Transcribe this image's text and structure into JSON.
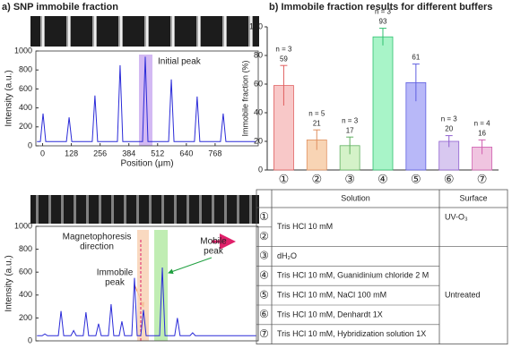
{
  "chart_data": [
    {
      "type": "line",
      "title": "a) SNP immobile fraction",
      "xlabel": "Position (μm)",
      "ylabel": "Intensity (a.u.)",
      "color": "#2b2bd8",
      "x": [
        -25,
        -10,
        2,
        14,
        106,
        118,
        130,
        221,
        233,
        245,
        333,
        345,
        357,
        445,
        457,
        469,
        561,
        573,
        585,
        676,
        688,
        700,
        792,
        804,
        816,
        950
      ],
      "values": [
        45,
        45,
        340,
        45,
        45,
        300,
        45,
        45,
        530,
        45,
        45,
        850,
        45,
        45,
        940,
        45,
        45,
        700,
        45,
        45,
        520,
        45,
        45,
        340,
        45,
        45
      ],
      "xlim": [
        -30,
        960
      ],
      "ylim": [
        0,
        1000
      ],
      "xticks": [
        0,
        128,
        256,
        384,
        512,
        640,
        768
      ],
      "yticks": [
        0,
        200,
        400,
        600,
        800,
        1000
      ],
      "highlights": [
        {
          "range": [
            429,
            489
          ],
          "color": "#c8a8f0",
          "label": "Initial peak",
          "label_color": "#9a5ce0"
        }
      ]
    },
    {
      "type": "line",
      "ylabel": "Intensity (a.u.)",
      "color": "#2b2bd8",
      "x": [
        -25,
        -2,
        10,
        22,
        70,
        82,
        94,
        126,
        138,
        150,
        181,
        193,
        205,
        237,
        249,
        261,
        293,
        305,
        317,
        341,
        353,
        365,
        397,
        409,
        421,
        437,
        449,
        461,
        521,
        533,
        545,
        588,
        600,
        612,
        656,
        668,
        680,
        950
      ],
      "values": [
        45,
        45,
        60,
        45,
        45,
        260,
        45,
        45,
        90,
        45,
        45,
        250,
        45,
        45,
        150,
        45,
        45,
        320,
        45,
        45,
        170,
        45,
        45,
        550,
        45,
        45,
        270,
        45,
        45,
        640,
        45,
        45,
        200,
        45,
        45,
        70,
        45,
        45
      ],
      "xlim": [
        -30,
        960
      ],
      "ylim": [
        0,
        1000
      ],
      "yticks": [
        0,
        200,
        400,
        600,
        800,
        1000
      ],
      "marker_x": 437,
      "highlights": [
        {
          "range": [
            421,
            473
          ],
          "color": "#f8d0b0"
        },
        {
          "range": [
            497,
            557
          ],
          "color": "#b0e8a0"
        }
      ],
      "annotations": [
        {
          "lines": [
            "Magnetophoresis",
            "direction"
          ],
          "color": "#e0206a"
        },
        {
          "lines": [
            "Immobile",
            "peak"
          ],
          "color": "#f08040"
        },
        {
          "lines": [
            "Mobile",
            "peak"
          ],
          "color": "#20a040"
        }
      ]
    },
    {
      "type": "bar",
      "title": "b) Immobile fraction results for different buffers",
      "ylabel": "Immobile fraction (%)",
      "categories": [
        "①",
        "②",
        "③",
        "④",
        "⑤",
        "⑥",
        "⑦"
      ],
      "values": [
        59,
        21,
        17,
        93,
        61,
        20,
        16
      ],
      "errors": [
        14,
        7,
        6,
        6,
        13,
        4,
        5
      ],
      "n_labels": [
        "n = 3",
        "n = 5",
        "n = 3",
        "n = 3",
        null,
        "n = 3",
        "n = 4"
      ],
      "colors": [
        "#f8c8c8",
        "#f8d4b4",
        "#d4f2c8",
        "#a8f4c8",
        "#b8b8f8",
        "#d8c8f0",
        "#f0c4e0"
      ],
      "edge_colors": [
        "#e06060",
        "#e09060",
        "#60b060",
        "#30c070",
        "#6060e0",
        "#9060d0",
        "#d060b0"
      ],
      "ylim": [
        0,
        100
      ],
      "yticks": [
        0,
        20,
        40,
        60,
        80,
        100
      ]
    }
  ],
  "table": {
    "header": [
      "Solution",
      "Surface"
    ],
    "numbers": [
      "①",
      "②",
      "③",
      "④",
      "⑤",
      "⑥",
      "⑦"
    ],
    "solutions": [
      {
        "text": "Tris HCl 10 mM",
        "rowspan": 2
      },
      {
        "text": "dH₂O",
        "rowspan": 1
      },
      {
        "text": "Tris HCl 10 mM, Guanidinium chloride 2 M",
        "rowspan": 1
      },
      {
        "text": "Tris HCl 10 mM, NaCl 100 mM",
        "rowspan": 1
      },
      {
        "text": "Tris HCl 10 mM, Denhardt 1X",
        "rowspan": 1
      },
      {
        "text": "Tris HCl 10 mM, Hybridization solution 1X",
        "rowspan": 1
      }
    ],
    "surfaces": [
      {
        "text": "UV-O₃",
        "rowspan": 2
      },
      {
        "text": "Untreated",
        "rowspan": 5
      }
    ]
  }
}
